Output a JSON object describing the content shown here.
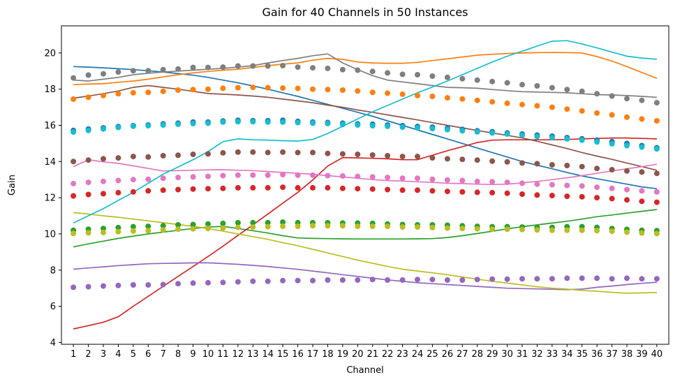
{
  "chart_data": {
    "type": "line",
    "title": "Gain for 40 Channels in 50 Instances",
    "xlabel": "Channel",
    "ylabel": "Gain",
    "x": [
      1,
      2,
      3,
      4,
      5,
      6,
      7,
      8,
      9,
      10,
      11,
      12,
      13,
      14,
      15,
      16,
      17,
      18,
      19,
      20,
      21,
      22,
      23,
      24,
      25,
      26,
      27,
      28,
      29,
      30,
      31,
      32,
      33,
      34,
      35,
      36,
      37,
      38,
      39,
      40
    ],
    "xlim": [
      0.2,
      40.8
    ],
    "ylim": [
      3.9,
      21.5
    ],
    "yticks": [
      4,
      6,
      8,
      10,
      12,
      14,
      16,
      18,
      20
    ],
    "grid": false,
    "legend": "none",
    "line_series": [
      {
        "color": "#1f77b4",
        "values": [
          19.25,
          19.22,
          19.18,
          19.13,
          19.08,
          19.02,
          18.95,
          18.86,
          18.77,
          18.65,
          18.5,
          18.35,
          18.18,
          18.0,
          17.8,
          17.6,
          17.38,
          17.16,
          16.94,
          16.72,
          16.5,
          16.25,
          16.0,
          15.75,
          15.5,
          15.25,
          15.0,
          14.75,
          14.5,
          14.25,
          14.0,
          13.8,
          13.6,
          13.4,
          13.2,
          13.05,
          12.9,
          12.75,
          12.6,
          12.5
        ]
      },
      {
        "color": "#ff7f0e",
        "values": [
          18.25,
          18.28,
          18.3,
          18.38,
          18.45,
          18.55,
          18.68,
          18.8,
          18.9,
          18.98,
          19.05,
          19.1,
          19.2,
          19.3,
          19.38,
          19.45,
          19.6,
          19.7,
          19.65,
          19.5,
          19.45,
          19.43,
          19.43,
          19.48,
          19.58,
          19.68,
          19.78,
          19.88,
          19.93,
          19.97,
          20.0,
          20.02,
          20.03,
          20.02,
          20.0,
          19.8,
          19.55,
          19.25,
          18.92,
          18.6
        ]
      },
      {
        "color": "#2ca02c",
        "values": [
          9.28,
          9.45,
          9.6,
          9.75,
          9.88,
          10.0,
          10.1,
          10.2,
          10.3,
          10.38,
          10.42,
          10.3,
          10.18,
          10.05,
          9.9,
          9.78,
          9.75,
          9.74,
          9.73,
          9.72,
          9.72,
          9.72,
          9.72,
          9.73,
          9.74,
          9.8,
          9.9,
          10.02,
          10.15,
          10.28,
          10.4,
          10.5,
          10.6,
          10.7,
          10.82,
          10.95,
          11.05,
          11.15,
          11.25,
          11.35
        ]
      },
      {
        "color": "#d62728",
        "values": [
          4.75,
          4.93,
          5.12,
          5.42,
          6.0,
          6.55,
          7.1,
          7.65,
          8.2,
          8.75,
          9.32,
          9.92,
          10.5,
          11.1,
          11.7,
          12.3,
          12.98,
          13.75,
          14.22,
          14.2,
          14.18,
          14.15,
          14.1,
          14.1,
          14.35,
          14.6,
          14.82,
          15.05,
          15.18,
          15.2,
          15.2,
          15.2,
          15.2,
          15.22,
          15.25,
          15.28,
          15.3,
          15.3,
          15.28,
          15.25
        ]
      },
      {
        "color": "#9467bd",
        "values": [
          8.05,
          8.12,
          8.18,
          8.25,
          8.3,
          8.35,
          8.37,
          8.38,
          8.4,
          8.4,
          8.36,
          8.32,
          8.26,
          8.2,
          8.12,
          8.04,
          7.95,
          7.85,
          7.75,
          7.65,
          7.55,
          7.46,
          7.38,
          7.3,
          7.25,
          7.2,
          7.15,
          7.1,
          7.05,
          7.0,
          6.98,
          6.96,
          6.94,
          6.92,
          6.95,
          7.05,
          7.12,
          7.2,
          7.27,
          7.33
        ]
      },
      {
        "color": "#8c564b",
        "values": [
          17.5,
          17.62,
          17.75,
          17.9,
          18.1,
          18.2,
          18.1,
          18.0,
          17.88,
          17.76,
          17.72,
          17.68,
          17.62,
          17.55,
          17.45,
          17.35,
          17.25,
          17.12,
          17.0,
          16.85,
          16.72,
          16.58,
          16.44,
          16.3,
          16.15,
          16.0,
          15.86,
          15.72,
          15.58,
          15.45,
          15.3,
          15.12,
          14.92,
          14.72,
          14.5,
          14.3,
          14.12,
          13.92,
          13.72,
          13.52
        ]
      },
      {
        "color": "#e377c2",
        "values": [
          13.72,
          14.1,
          13.98,
          13.9,
          13.76,
          13.62,
          13.48,
          13.5,
          13.52,
          13.54,
          13.55,
          13.52,
          13.5,
          13.45,
          13.4,
          13.35,
          13.3,
          13.22,
          13.15,
          13.08,
          13.0,
          12.95,
          12.92,
          12.88,
          12.85,
          12.8,
          12.78,
          12.75,
          12.73,
          12.75,
          12.82,
          12.9,
          13.0,
          13.1,
          13.22,
          13.35,
          13.48,
          13.6,
          13.72,
          13.85
        ]
      },
      {
        "color": "#7f7f7f",
        "values": [
          18.5,
          18.45,
          18.55,
          18.65,
          18.8,
          18.88,
          18.95,
          19.0,
          19.05,
          19.1,
          19.15,
          19.22,
          19.3,
          19.45,
          19.58,
          19.7,
          19.85,
          19.95,
          19.45,
          19.08,
          18.75,
          18.5,
          18.4,
          18.3,
          18.2,
          18.1,
          18.08,
          18.05,
          17.98,
          17.92,
          17.86,
          17.84,
          17.82,
          17.8,
          17.75,
          17.7,
          17.68,
          17.65,
          17.6,
          17.55
        ]
      },
      {
        "color": "#bcbd22",
        "values": [
          11.18,
          11.1,
          11.0,
          10.92,
          10.82,
          10.72,
          10.62,
          10.52,
          10.42,
          10.3,
          10.15,
          10.0,
          9.85,
          9.7,
          9.52,
          9.35,
          9.15,
          8.95,
          8.75,
          8.55,
          8.38,
          8.2,
          8.05,
          7.95,
          7.85,
          7.75,
          7.62,
          7.5,
          7.38,
          7.28,
          7.18,
          7.08,
          7.0,
          6.95,
          6.88,
          6.83,
          6.77,
          6.72,
          6.74,
          6.76
        ]
      },
      {
        "color": "#17becf",
        "values": [
          10.6,
          11.0,
          11.4,
          11.85,
          12.3,
          12.8,
          13.3,
          13.7,
          14.1,
          14.55,
          15.1,
          15.25,
          15.2,
          15.18,
          15.15,
          15.13,
          15.22,
          15.55,
          15.95,
          16.35,
          16.75,
          17.1,
          17.45,
          17.8,
          18.12,
          18.45,
          18.8,
          19.15,
          19.5,
          19.82,
          20.1,
          20.38,
          20.65,
          20.68,
          20.5,
          20.28,
          20.05,
          19.82,
          19.72,
          19.65
        ]
      }
    ],
    "scatter_series": [
      {
        "color": "#1f77b4",
        "values": [
          15.72,
          15.8,
          15.86,
          15.93,
          15.98,
          16.02,
          16.08,
          16.12,
          16.18,
          16.18,
          16.24,
          16.28,
          16.26,
          16.26,
          16.28,
          16.22,
          16.18,
          16.16,
          16.12,
          16.08,
          16.06,
          16.02,
          15.98,
          15.94,
          15.9,
          15.84,
          15.78,
          15.7,
          15.65,
          15.58,
          15.52,
          15.46,
          15.4,
          15.32,
          15.26,
          15.18,
          15.1,
          15.0,
          14.88,
          14.76
        ]
      },
      {
        "color": "#17becf",
        "values": [
          15.63,
          15.72,
          15.8,
          15.88,
          15.95,
          15.98,
          16.02,
          16.06,
          16.1,
          16.12,
          16.18,
          16.2,
          16.2,
          16.18,
          16.18,
          16.15,
          16.12,
          16.1,
          16.05,
          16.02,
          15.98,
          15.95,
          15.9,
          15.86,
          15.82,
          15.76,
          15.7,
          15.64,
          15.58,
          15.52,
          15.45,
          15.38,
          15.32,
          15.25,
          15.18,
          15.08,
          14.98,
          14.88,
          14.8,
          14.7
        ]
      },
      {
        "color": "#ff7f0e",
        "values": [
          17.45,
          17.55,
          17.65,
          17.75,
          17.8,
          17.82,
          17.88,
          17.95,
          17.98,
          18.0,
          18.05,
          18.08,
          18.1,
          18.08,
          18.06,
          18.04,
          18.0,
          17.98,
          17.95,
          17.9,
          17.82,
          17.78,
          17.72,
          17.65,
          17.6,
          17.52,
          17.46,
          17.38,
          17.3,
          17.22,
          17.15,
          17.08,
          17.0,
          16.9,
          16.8,
          16.68,
          16.58,
          16.45,
          16.35,
          16.25
        ]
      },
      {
        "color": "#7f7f7f",
        "values": [
          18.62,
          18.78,
          18.85,
          18.95,
          19.02,
          19.02,
          19.08,
          19.12,
          19.2,
          19.2,
          19.22,
          19.28,
          19.28,
          19.28,
          19.3,
          19.22,
          19.18,
          19.15,
          19.08,
          19.05,
          18.98,
          18.9,
          18.82,
          18.8,
          18.72,
          18.65,
          18.58,
          18.5,
          18.42,
          18.35,
          18.25,
          18.18,
          18.08,
          17.98,
          17.88,
          17.75,
          17.62,
          17.48,
          17.38,
          17.25
        ]
      },
      {
        "color": "#8c564b",
        "values": [
          14.0,
          14.08,
          14.15,
          14.2,
          14.28,
          14.25,
          14.32,
          14.35,
          14.4,
          14.42,
          14.48,
          14.52,
          14.52,
          14.5,
          14.52,
          14.5,
          14.5,
          14.45,
          14.42,
          14.4,
          14.36,
          14.32,
          14.28,
          14.28,
          14.2,
          14.15,
          14.12,
          14.08,
          14.02,
          13.98,
          13.92,
          13.88,
          13.82,
          13.78,
          13.72,
          13.62,
          13.55,
          13.48,
          13.42,
          13.35
        ]
      },
      {
        "color": "#e377c2",
        "values": [
          12.78,
          12.85,
          12.9,
          12.95,
          13.0,
          13.02,
          13.08,
          13.12,
          13.15,
          13.18,
          13.22,
          13.25,
          13.25,
          13.25,
          13.28,
          13.25,
          13.25,
          13.22,
          13.2,
          13.18,
          13.15,
          13.12,
          13.08,
          13.08,
          13.02,
          12.98,
          12.95,
          12.9,
          12.88,
          12.85,
          12.8,
          12.75,
          12.72,
          12.68,
          12.65,
          12.58,
          12.52,
          12.45,
          12.38,
          12.32
        ]
      },
      {
        "color": "#d62728",
        "values": [
          12.1,
          12.18,
          12.22,
          12.28,
          12.32,
          12.38,
          12.42,
          12.45,
          12.48,
          12.5,
          12.52,
          12.55,
          12.55,
          12.55,
          12.58,
          12.55,
          12.55,
          12.55,
          12.52,
          12.5,
          12.48,
          12.45,
          12.42,
          12.42,
          12.38,
          12.35,
          12.32,
          12.3,
          12.28,
          12.25,
          12.2,
          12.15,
          12.12,
          12.08,
          12.05,
          12.0,
          11.95,
          11.88,
          11.8,
          11.75
        ]
      },
      {
        "color": "#2ca02c",
        "values": [
          10.2,
          10.26,
          10.3,
          10.35,
          10.4,
          10.42,
          10.45,
          10.5,
          10.52,
          10.55,
          10.58,
          10.62,
          10.62,
          10.62,
          10.65,
          10.62,
          10.62,
          10.62,
          10.6,
          10.6,
          10.58,
          10.55,
          10.52,
          10.5,
          10.5,
          10.48,
          10.45,
          10.42,
          10.4,
          10.4,
          10.38,
          10.36,
          10.36,
          10.4,
          10.4,
          10.36,
          10.3,
          10.25,
          10.2,
          10.18
        ]
      },
      {
        "color": "#bcbd22",
        "values": [
          10.02,
          10.06,
          10.08,
          10.12,
          10.16,
          10.18,
          10.22,
          10.26,
          10.28,
          10.3,
          10.32,
          10.36,
          10.38,
          10.4,
          10.42,
          10.42,
          10.45,
          10.45,
          10.45,
          10.42,
          10.42,
          10.42,
          10.38,
          10.38,
          10.35,
          10.32,
          10.3,
          10.28,
          10.26,
          10.26,
          10.24,
          10.22,
          10.2,
          10.2,
          10.2,
          10.18,
          10.15,
          10.1,
          10.05,
          10.02
        ]
      },
      {
        "color": "#9467bd",
        "values": [
          7.05,
          7.08,
          7.12,
          7.15,
          7.18,
          7.18,
          7.2,
          7.25,
          7.28,
          7.3,
          7.32,
          7.35,
          7.38,
          7.38,
          7.42,
          7.42,
          7.42,
          7.45,
          7.45,
          7.45,
          7.48,
          7.45,
          7.45,
          7.48,
          7.48,
          7.45,
          7.45,
          7.48,
          7.5,
          7.5,
          7.52,
          7.52,
          7.52,
          7.55,
          7.55,
          7.55,
          7.52,
          7.55,
          7.52,
          7.52
        ]
      }
    ]
  }
}
